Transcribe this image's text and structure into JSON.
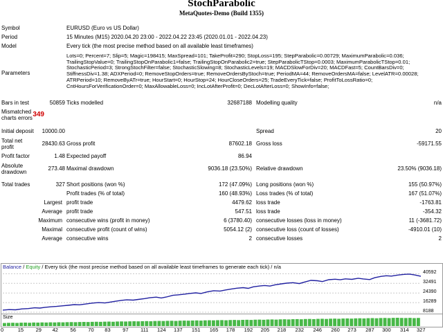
{
  "header": {
    "title": "StochParabolic",
    "subtitle": "MetaQuotes-Demo (Build 1355)"
  },
  "info": {
    "symbol_label": "Symbol",
    "symbol_value": "EURUSD (Euro vs US Dollar)",
    "period_label": "Period",
    "period_value": "15 Minutes (M15) 2020.04.20 23:00 - 2022.04.22 23:45 (2020.01.01 - 2022.04.23)",
    "model_label": "Model",
    "model_value": "Every tick (the most precise method based on all available least timeframes)",
    "parameters_label": "Parameters",
    "parameters_value": "Lots=0; Percent=7; Slip=5; Magic=198415; MaxSpread=101; TakeProfit=290; StopLoss=195; StepParabolic=0.00729; MaximumParabolic=0.036; TrailingStopValue=0; TrailingStopOnParabolic1=false; TrailingStopOnParabolic2=true; StepParabolicTStop=0.0003; MaximumParabolicTStop=0.01; StochasticPeriod=3; StrongStochFilter=false; StochasticSlowing=8; StochasticLevels=19; MACDSlowForDiv=20; MACDFast=5; CountBarsDiv=0; StiffnessDiv=1.38; ADXPeriod=0; RemoveStopOrders=true; RemoveOrdersByStoch=true; PeriodMA=44; RemoveOrdersMA=false; LevelATR=0.00028; ATRPeriod=10; RemoveByATr=true; HourStart=0; HourStop=24; HourCloseOrders=25; TradeEveryTick=false; ProfitToLossRatio=0; CntHoursForVerificationOrder=0; MaxAllowableLoss=0; IncLotAfterProfit=0; DecLotAfterLoss=0; ShowInfo=false;"
  },
  "stats": {
    "bars_label": "Bars in test",
    "bars_value": "50859",
    "ticks_label": "Ticks modelled",
    "ticks_value": "32687188",
    "quality_label": "Modelling quality",
    "quality_value": "n/a",
    "mismatch_label_1": "Mismatched",
    "mismatch_label_2": "charts errors",
    "mismatch_value": "349",
    "deposit_label": "Initial deposit",
    "deposit_value": "10000.00",
    "spread_label": "Spread",
    "spread_value": "20",
    "netprofit_label_1": "Total net",
    "netprofit_label_2": "profit",
    "netprofit_value": "28430.63",
    "grossprofit_label": "Gross profit",
    "grossprofit_value": "87602.18",
    "grossloss_label": "Gross loss",
    "grossloss_value": "-59171.55",
    "pf_label": "Profit factor",
    "pf_value": "1.48",
    "payoff_label": "Expected payoff",
    "payoff_value": "86.94",
    "absdd_label_1": "Absolute",
    "absdd_label_2": "drawdown",
    "absdd_value": "273.48",
    "maxdd_label": "Maximal drawdown",
    "maxdd_value": "9036.18 (23.50%)",
    "reldd_label": "Relative drawdown",
    "reldd_value": "23.50% (9036.18)",
    "trades_label": "Total trades",
    "trades_value": "327",
    "short_label": "Short positions (won %)",
    "short_value": "172 (47.09%)",
    "long_label": "Long positions (won %)",
    "long_value": "155 (50.97%)",
    "ptrades_label": "Profit trades (% of total)",
    "ptrades_value": "160 (48.93%)",
    "ltrades_label": "Loss trades (% of total)",
    "ltrades_value": "167 (51.07%)",
    "largest_label": "Largest",
    "largest_profit_label": "profit trade",
    "largest_profit_value": "4479.62",
    "largest_loss_label": "loss trade",
    "largest_loss_value": "-1763.81",
    "average_label": "Average",
    "average_profit_label": "profit trade",
    "average_profit_value": "547.51",
    "average_loss_label": "loss trade",
    "average_loss_value": "-354.32",
    "maximum_label": "Maximum",
    "max_wins_label": "consecutive wins (profit in money)",
    "max_wins_value": "6 (3780.40)",
    "max_losses_label": "consecutive losses (loss in money)",
    "max_losses_value": "11 (-3681.72)",
    "maximal_label": "Maximal",
    "maximal_profit_label": "consecutive profit (count of wins)",
    "maximal_profit_value": "5054.12 (2)",
    "maximal_loss_label": "consecutive loss (count of losses)",
    "maximal_loss_value": "-4910.01 (10)",
    "avg_cons_label": "Average",
    "avg_wins_label": "consecutive wins",
    "avg_wins_value": "2",
    "avg_losses_label": "consecutive losses",
    "avg_losses_value": "2"
  },
  "chart_legend": {
    "balance": "Balance",
    "sep1": " / ",
    "equity": "Equity",
    "rest": " / Every tick (the most precise method based on all available least timeframes to generate each tick) / n/a"
  },
  "colors": {
    "balance": "#1f1fa0",
    "equity": "#22a022",
    "size_bars": "#48b848",
    "grid": "#c8c8c8"
  },
  "size_label": "Size",
  "chart_data": {
    "type": "line",
    "title": "",
    "xlabel": "",
    "ylabel": "",
    "x_ticks": [
      "0",
      "15",
      "29",
      "42",
      "56",
      "70",
      "83",
      "97",
      "111",
      "124",
      "137",
      "151",
      "165",
      "178",
      "192",
      "205",
      "218",
      "232",
      "246",
      "260",
      "273",
      "287",
      "300",
      "314",
      "327"
    ],
    "y_ticks": [
      "40592",
      "32491",
      "24390",
      "16289",
      "8188"
    ],
    "ylim": [
      8188,
      42000
    ],
    "xlim": [
      0,
      327
    ],
    "series": [
      {
        "name": "Balance",
        "x": [
          0,
          5,
          10,
          15,
          20,
          25,
          29,
          33,
          38,
          42,
          47,
          51,
          56,
          60,
          65,
          70,
          75,
          80,
          83,
          88,
          93,
          97,
          102,
          106,
          111,
          115,
          120,
          124,
          128,
          133,
          137,
          142,
          146,
          151,
          155,
          160,
          165,
          170,
          174,
          178,
          183,
          188,
          192,
          196,
          201,
          205,
          209,
          213,
          218,
          222,
          227,
          232,
          236,
          241,
          246,
          250,
          255,
          260,
          264,
          268,
          273,
          278,
          282,
          287,
          291,
          296,
          300,
          304,
          309,
          314,
          318,
          322,
          327
        ],
        "y": [
          10000,
          10400,
          10200,
          11000,
          11300,
          11900,
          11700,
          12300,
          12800,
          13100,
          13600,
          14000,
          14600,
          14400,
          15100,
          15900,
          16300,
          16000,
          16500,
          17400,
          18200,
          18600,
          18400,
          19000,
          19700,
          20400,
          20900,
          20200,
          21000,
          22400,
          22800,
          23400,
          24000,
          24500,
          24000,
          25300,
          26300,
          26000,
          26900,
          27600,
          28400,
          28900,
          28300,
          29600,
          30300,
          30700,
          30200,
          31300,
          32100,
          32700,
          33100,
          32300,
          33600,
          35000,
          34700,
          34000,
          35600,
          36000,
          35500,
          36300,
          35900,
          36800,
          36200,
          35700,
          37300,
          38400,
          38900,
          38600,
          39500,
          40100,
          40300,
          39600,
          38430
        ]
      }
    ]
  },
  "size_values": [
    0.37,
    0.39,
    0.4,
    0.38,
    0.41,
    0.42,
    0.4,
    0.43,
    0.42,
    0.44,
    0.43,
    0.45,
    0.44,
    0.46,
    0.45,
    0.47,
    0.48,
    0.47,
    0.49,
    0.5,
    0.49,
    0.51,
    0.52,
    0.51,
    0.53,
    0.54,
    0.52,
    0.55,
    0.56,
    0.55,
    0.57,
    0.58,
    0.57,
    0.59,
    0.6,
    0.58,
    0.61,
    0.62,
    0.61,
    0.63,
    0.64,
    0.62,
    0.65,
    0.66,
    0.65,
    0.67,
    0.68,
    0.66,
    0.69,
    0.7,
    0.69,
    0.71,
    0.72,
    0.7,
    0.73,
    0.74,
    0.72,
    0.75,
    0.76,
    0.74,
    0.77,
    0.78,
    0.76,
    0.79,
    0.8,
    0.78,
    0.81,
    0.82,
    0.8,
    0.83,
    0.84,
    0.82,
    0.85,
    0.86,
    0.84,
    0.87,
    0.88,
    0.86,
    0.89,
    0.9,
    0.88,
    0.91,
    0.92,
    0.9,
    0.93,
    0.94,
    0.92,
    0.95,
    0.96,
    0.94,
    0.97,
    0.98,
    0.96,
    0.99,
    1.0,
    0.98,
    0.97,
    0.99,
    0.96,
    0.98
  ]
}
